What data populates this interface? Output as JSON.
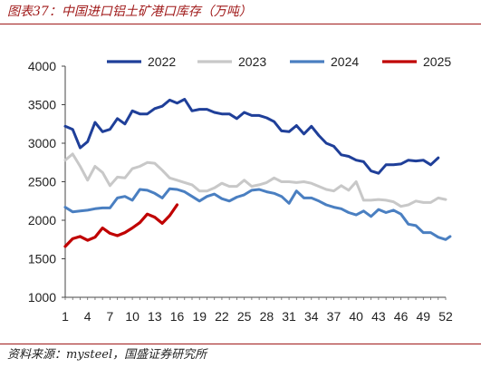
{
  "title": "图表37：中国进口铝土矿港口库存（万吨）",
  "source": "资料来源：mysteel，国盛证券研究所",
  "chart_data": {
    "type": "line",
    "xlabel": "",
    "ylabel": "",
    "xlim": [
      1,
      52
    ],
    "ylim": [
      1000,
      4000
    ],
    "x_ticks": [
      1,
      4,
      7,
      10,
      13,
      16,
      19,
      22,
      25,
      28,
      31,
      34,
      37,
      40,
      43,
      46,
      49,
      52
    ],
    "y_ticks": [
      1000,
      1500,
      2000,
      2500,
      3000,
      3500,
      4000
    ],
    "legend_position": "top",
    "grid": false,
    "series": [
      {
        "name": "2022",
        "color": "#1f3f99",
        "values": [
          3220,
          3180,
          2940,
          3020,
          3270,
          3150,
          3180,
          3320,
          3250,
          3420,
          3380,
          3380,
          3450,
          3480,
          3560,
          3520,
          3570,
          3420,
          3440,
          3440,
          3400,
          3380,
          3380,
          3320,
          3400,
          3360,
          3360,
          3330,
          3280,
          3160,
          3150,
          3230,
          3120,
          3220,
          3100,
          3000,
          2960,
          2850,
          2830,
          2780,
          2760,
          2640,
          2610,
          2720,
          2720,
          2730,
          2780,
          2770,
          2780,
          2720,
          2810
        ]
      },
      {
        "name": "2023",
        "color": "#c8c8c8",
        "values": [
          2780,
          2860,
          2700,
          2520,
          2700,
          2620,
          2450,
          2560,
          2550,
          2670,
          2700,
          2750,
          2740,
          2650,
          2550,
          2520,
          2490,
          2460,
          2380,
          2380,
          2420,
          2480,
          2440,
          2440,
          2520,
          2440,
          2460,
          2490,
          2550,
          2500,
          2500,
          2490,
          2500,
          2480,
          2440,
          2400,
          2380,
          2450,
          2390,
          2500,
          2260,
          2260,
          2270,
          2260,
          2240,
          2180,
          2200,
          2250,
          2230,
          2230,
          2290,
          2270
        ]
      },
      {
        "name": "2024",
        "color": "#4a7fc1",
        "values": [
          2170,
          2110,
          2120,
          2130,
          2150,
          2160,
          2160,
          2290,
          2310,
          2260,
          2400,
          2390,
          2350,
          2290,
          2410,
          2400,
          2370,
          2310,
          2250,
          2310,
          2340,
          2280,
          2250,
          2300,
          2330,
          2390,
          2400,
          2370,
          2350,
          2310,
          2220,
          2380,
          2290,
          2290,
          2250,
          2200,
          2170,
          2150,
          2100,
          2070,
          2120,
          2050,
          2140,
          2100,
          2130,
          2080,
          1950,
          1930,
          1840,
          1840,
          1780,
          1750,
          1790
        ]
      },
      {
        "name": "2025",
        "color": "#c00000",
        "values": [
          1660,
          1760,
          1790,
          1740,
          1780,
          1900,
          1830,
          1800,
          1840,
          1900,
          1970,
          2080,
          2040,
          1960,
          2060,
          2200
        ]
      }
    ]
  }
}
